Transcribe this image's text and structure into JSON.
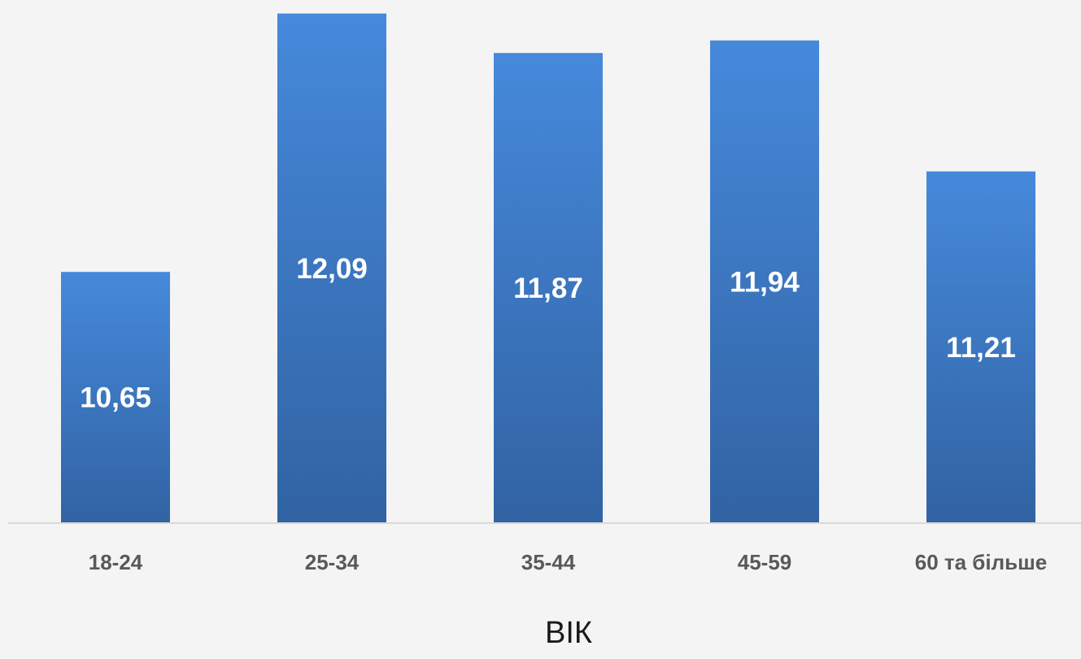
{
  "chart_data": {
    "type": "bar",
    "categories": [
      "18-24",
      "25-34",
      "35-44",
      "45-59",
      "60 та більше"
    ],
    "values": [
      10.65,
      12.09,
      11.87,
      11.94,
      11.21
    ],
    "value_labels": [
      "10,65",
      "12,09",
      "11,87",
      "11,94",
      "11,21"
    ],
    "title": "",
    "xlabel": "ВІК",
    "ylabel": "",
    "ylim": [
      9.25,
      12.12
    ],
    "grid": false,
    "legend": "none",
    "bar_color_top": "#4689db",
    "bar_color_bottom": "#3163a3",
    "baseline_color": "#d9d9d9",
    "label_color": "#595959",
    "background": "#f4f4f4"
  }
}
